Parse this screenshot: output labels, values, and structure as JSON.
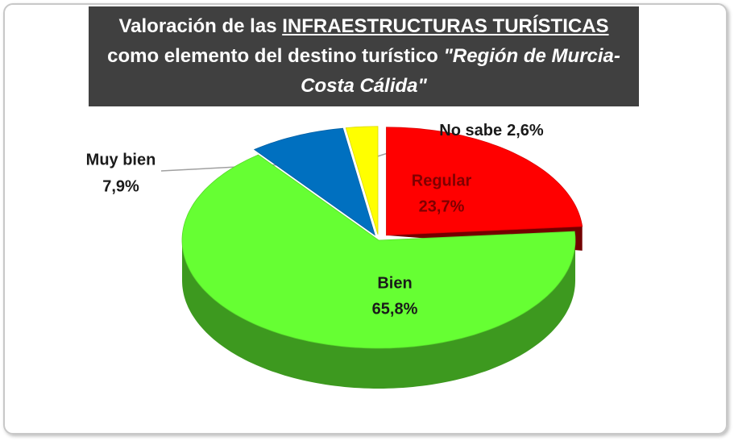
{
  "chart_data": {
    "type": "pie3d",
    "title": [
      "Valoración de las",
      "INFRAESTRUCTURAS TURÍSTICAS",
      "como elemento del destino turístico",
      "\"Región de Murcia- Costa Cálida\""
    ],
    "categories": [
      "Regular",
      "Bien",
      "Muy bien",
      "No sabe"
    ],
    "values": [
      23.7,
      65.8,
      7.9,
      2.6
    ],
    "value_labels": [
      "23,7%",
      "65,8%",
      "7,9%",
      "2,6%"
    ],
    "colors": [
      "#ff0000",
      "#66ff33",
      "#0070c0",
      "#ffff00"
    ]
  }
}
